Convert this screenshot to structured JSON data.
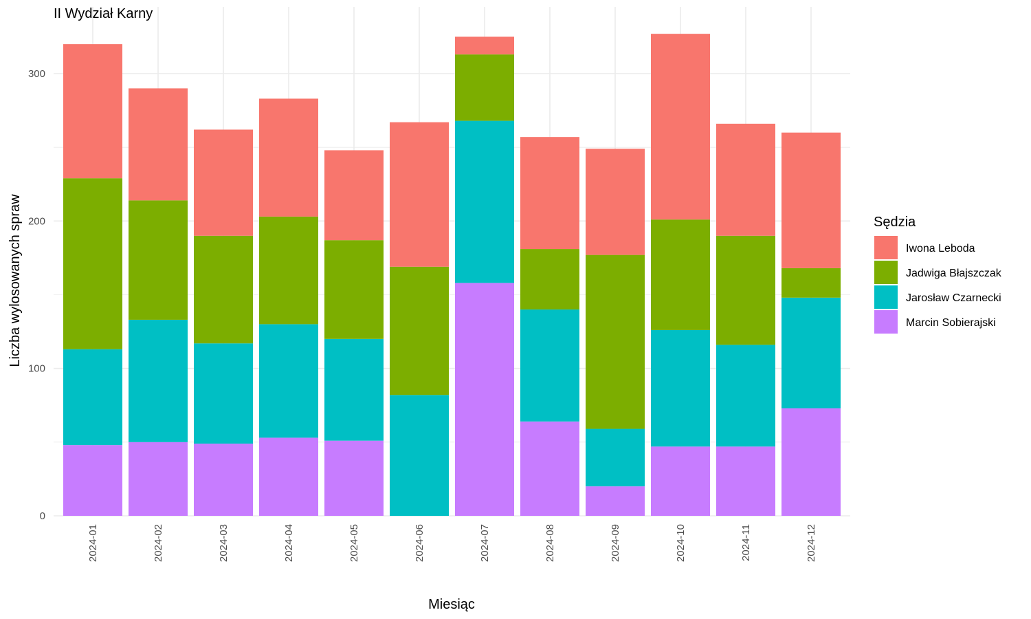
{
  "chart_data": {
    "type": "bar",
    "stacked": true,
    "title": "II Wydział Karny",
    "xlabel": "Miesiąc",
    "ylabel": "Liczba wylosowanych spraw",
    "ylim": [
      0,
      335
    ],
    "yticks": [
      0,
      100,
      200,
      300
    ],
    "grid": true,
    "legend_position": "right",
    "legend_title": "Sędzia",
    "categories": [
      "2024-01",
      "2024-02",
      "2024-03",
      "2024-04",
      "2024-05",
      "2024-06",
      "2024-07",
      "2024-08",
      "2024-09",
      "2024-10",
      "2024-11",
      "2024-12"
    ],
    "series": [
      {
        "name": "Marcin Sobierajski",
        "color": "#C77CFF",
        "values": [
          48,
          50,
          49,
          53,
          51,
          0,
          158,
          64,
          20,
          47,
          47,
          73
        ]
      },
      {
        "name": "Jarosław Czarnecki",
        "color": "#00BFC4",
        "values": [
          65,
          83,
          68,
          77,
          69,
          82,
          110,
          76,
          39,
          79,
          69,
          75
        ]
      },
      {
        "name": "Jadwiga Błajszczak",
        "color": "#7CAE00",
        "values": [
          116,
          81,
          73,
          73,
          67,
          87,
          45,
          41,
          118,
          75,
          74,
          20
        ]
      },
      {
        "name": "Iwona Leboda",
        "color": "#F8766D",
        "values": [
          91,
          76,
          72,
          80,
          61,
          98,
          12,
          76,
          72,
          126,
          76,
          92
        ]
      }
    ],
    "legend_order": [
      "Iwona Leboda",
      "Jadwiga Błajszczak",
      "Jarosław Czarnecki",
      "Marcin Sobierajski"
    ]
  }
}
